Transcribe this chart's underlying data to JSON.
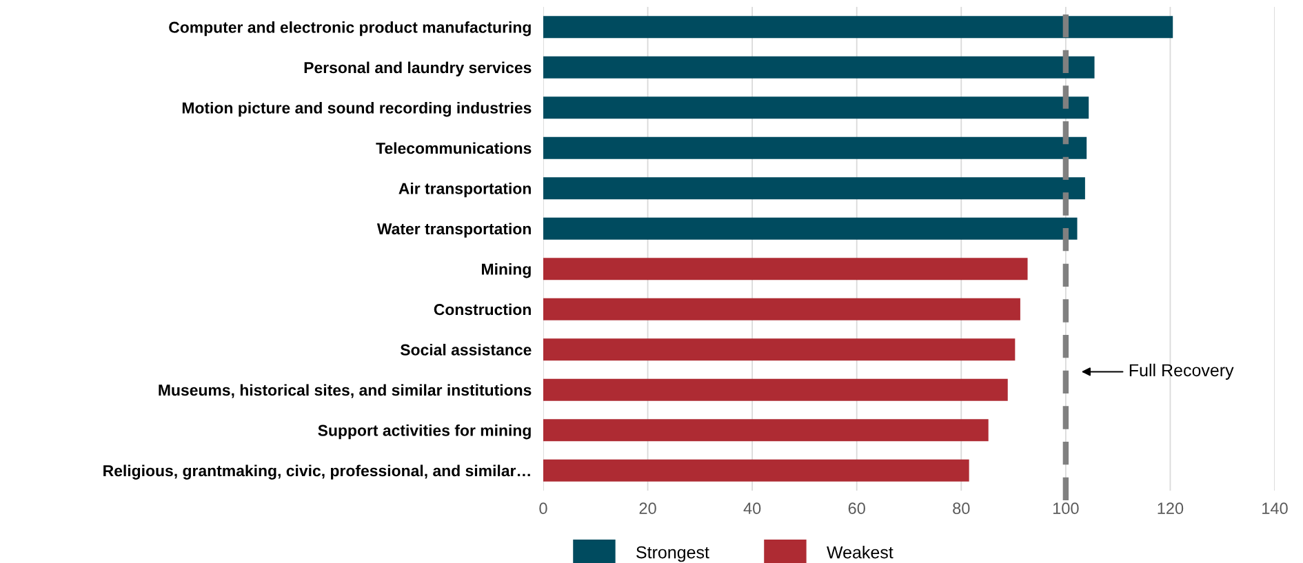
{
  "chart_data": {
    "type": "bar",
    "orientation": "horizontal",
    "categories": [
      "Computer and electronic product manufacturing",
      "Personal and laundry services",
      "Motion picture and sound recording industries",
      "Telecommunications",
      "Air transportation",
      "Water transportation",
      "Mining",
      "Construction",
      "Social assistance",
      "Museums, historical sites, and similar institutions",
      "Support activities for mining",
      "Religious, grantmaking, civic, professional, and similar…"
    ],
    "series": [
      {
        "name": "Strongest",
        "color": "#004b5f",
        "values": [
          120.5,
          105.5,
          104.4,
          104.0,
          103.7,
          102.2,
          null,
          null,
          null,
          null,
          null,
          null
        ]
      },
      {
        "name": "Weakest",
        "color": "#ae2b33",
        "values": [
          null,
          null,
          null,
          null,
          null,
          null,
          92.7,
          91.3,
          90.3,
          88.9,
          85.2,
          81.5
        ]
      }
    ],
    "xlim": [
      0,
      140
    ],
    "xticks": [
      0,
      20,
      40,
      60,
      80,
      100,
      120,
      140
    ],
    "grid": "x",
    "legend": "bottom",
    "ref_lines": [
      {
        "axis": "x",
        "value": 100,
        "color": "#808080",
        "line_style": "dashed"
      }
    ],
    "annotations": [
      "Full Recovery"
    ]
  }
}
